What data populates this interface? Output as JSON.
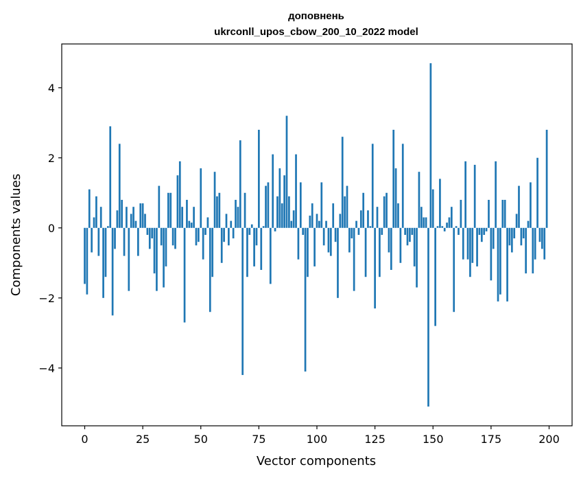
{
  "chart_data": {
    "type": "bar",
    "title": "доповнень",
    "subtitle": "ukrconll_upos_cbow_200_10_2022 model",
    "xlabel": "Vector components",
    "ylabel": "Components values",
    "xlim": [
      -9.9,
      209.9
    ],
    "ylim": [
      -5.65,
      5.25
    ],
    "x_ticks": [
      0,
      25,
      50,
      75,
      100,
      125,
      150,
      175,
      200
    ],
    "y_ticks": [
      -4,
      -2,
      0,
      2,
      4
    ],
    "y_tick_labels": [
      "−4",
      "−2",
      "0",
      "2",
      "4"
    ],
    "grid": false,
    "legend": "none",
    "bar_color": "#1f77b4",
    "values": [
      -1.6,
      -1.9,
      1.1,
      -0.7,
      0.3,
      0.9,
      -0.8,
      0.6,
      -2.0,
      -1.4,
      0.05,
      2.9,
      -2.5,
      -0.6,
      0.5,
      2.4,
      0.8,
      -0.8,
      0.6,
      -1.8,
      0.4,
      0.6,
      0.2,
      -0.8,
      0.7,
      0.7,
      0.4,
      -0.2,
      -0.6,
      -0.3,
      -1.3,
      -1.8,
      1.2,
      -0.5,
      -1.7,
      -1.1,
      1.0,
      1.0,
      -0.5,
      -0.6,
      1.5,
      1.9,
      0.6,
      -2.7,
      0.8,
      0.2,
      0.15,
      0.6,
      -0.5,
      -0.4,
      1.7,
      -0.9,
      -0.2,
      0.3,
      -2.4,
      -1.4,
      1.6,
      0.9,
      1.0,
      -1.0,
      -0.4,
      0.4,
      -0.5,
      0.2,
      -0.3,
      0.8,
      0.6,
      2.5,
      -4.2,
      1.0,
      -1.4,
      -0.2,
      0.1,
      -1.1,
      -0.5,
      2.8,
      -1.2,
      0.05,
      1.2,
      1.3,
      -1.6,
      2.1,
      -0.1,
      0.9,
      1.7,
      0.7,
      1.5,
      3.2,
      0.9,
      0.2,
      0.5,
      2.1,
      -0.9,
      1.3,
      -0.2,
      -4.1,
      -1.4,
      0.35,
      0.7,
      -1.1,
      0.4,
      0.2,
      1.3,
      -0.5,
      0.2,
      -0.7,
      -0.8,
      0.7,
      -0.4,
      -2.0,
      0.4,
      2.6,
      0.9,
      1.2,
      -0.7,
      -0.3,
      -1.8,
      0.2,
      -0.2,
      0.5,
      1.0,
      -1.4,
      0.5,
      0.05,
      2.4,
      -2.3,
      0.6,
      -1.4,
      -0.2,
      0.9,
      1.0,
      -0.7,
      -1.2,
      2.8,
      1.7,
      0.7,
      -1.0,
      2.4,
      -0.2,
      -0.5,
      -0.4,
      -0.2,
      -1.1,
      -1.7,
      1.6,
      0.6,
      0.3,
      0.3,
      -5.1,
      4.7,
      1.1,
      -2.8,
      0.05,
      1.4,
      0.05,
      -0.1,
      0.15,
      0.3,
      0.6,
      -2.4,
      0.05,
      -0.2,
      0.8,
      -0.9,
      1.9,
      -0.9,
      -1.4,
      -1.0,
      1.8,
      -1.1,
      -0.2,
      -0.4,
      -0.2,
      -0.1,
      0.8,
      -1.5,
      -0.6,
      1.9,
      -2.1,
      -1.9,
      0.8,
      0.8,
      -2.1,
      -0.5,
      -0.7,
      -0.3,
      0.4,
      1.2,
      -0.5,
      -0.3,
      -1.3,
      0.2,
      1.3,
      -1.3,
      -0.9,
      2.0,
      -0.4,
      -0.6,
      -0.9,
      2.8
    ]
  }
}
